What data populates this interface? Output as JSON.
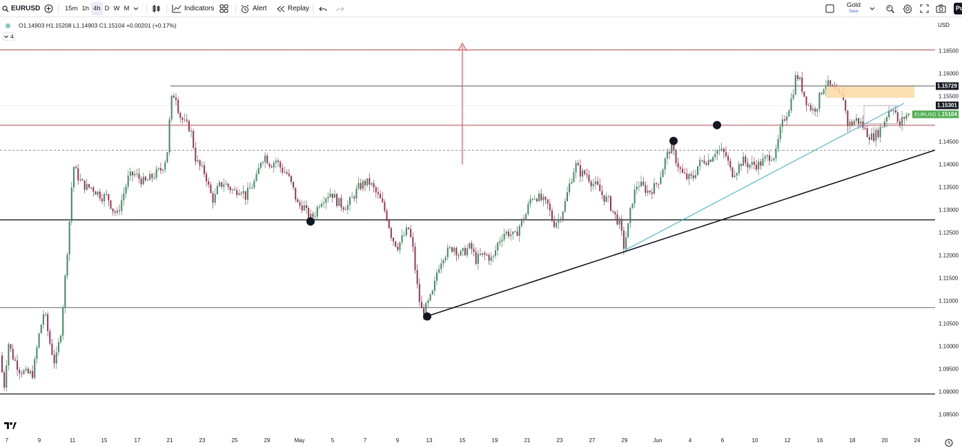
{
  "toolbar": {
    "symbol": "EURUSD",
    "intervals": [
      "15m",
      "1h",
      "4h",
      "D",
      "W",
      "M"
    ],
    "active_interval": "4h",
    "indicators_label": "Indicators",
    "alert_label": "Alert",
    "replay_label": "Replay",
    "layout_name": "Gold",
    "save_label": "Save",
    "publish_label": "Pu"
  },
  "legend": {
    "ohlc": "O1.14903 H1.15208 L1.14903 C1.15104 +0.00201 (+0.17%)",
    "indicator_count": "4"
  },
  "price_axis": {
    "currency": "USD",
    "ticks": [
      "1.16500",
      "1.16000",
      "1.15500",
      "1.14500",
      "1.14000",
      "1.13500",
      "1.13000",
      "1.12500",
      "1.12000",
      "1.11500",
      "1.11000",
      "1.10500",
      "1.10000",
      "1.09500",
      "1.09000",
      "1.08500"
    ],
    "labels": [
      {
        "text": "1.15729",
        "color": "#131722"
      },
      {
        "text": "1.15301",
        "color": "#131722"
      },
      {
        "text": "1.15104",
        "color": "#4caf50"
      }
    ],
    "symbol_tag": "EURUSD"
  },
  "time_axis": {
    "ticks": [
      "7",
      "9",
      "11",
      "15",
      "17",
      "21",
      "23",
      "25",
      "29",
      "May",
      "5",
      "7",
      "9",
      "13",
      "15",
      "19",
      "21",
      "23",
      "27",
      "29",
      "Jun",
      "4",
      "6",
      "10",
      "12",
      "16",
      "18",
      "20",
      "24"
    ]
  },
  "drawings": {
    "resistance_red_upper": 1.16525,
    "resistance_red_lower": 1.14865,
    "gray_upper": 1.15729,
    "black_mid": 1.12785,
    "gray_lower": 1.10855,
    "black_bottom": 1.08955,
    "dashed_level": 1.14315
  },
  "colors": {
    "bull": "#26a69a",
    "bull_body": "#3d9970",
    "bear": "#b03a5b",
    "red_line": "#e53935",
    "trend_cyan": "#26b5d6",
    "zone": "#fbd9a6",
    "green_tag": "#4caf50"
  }
}
